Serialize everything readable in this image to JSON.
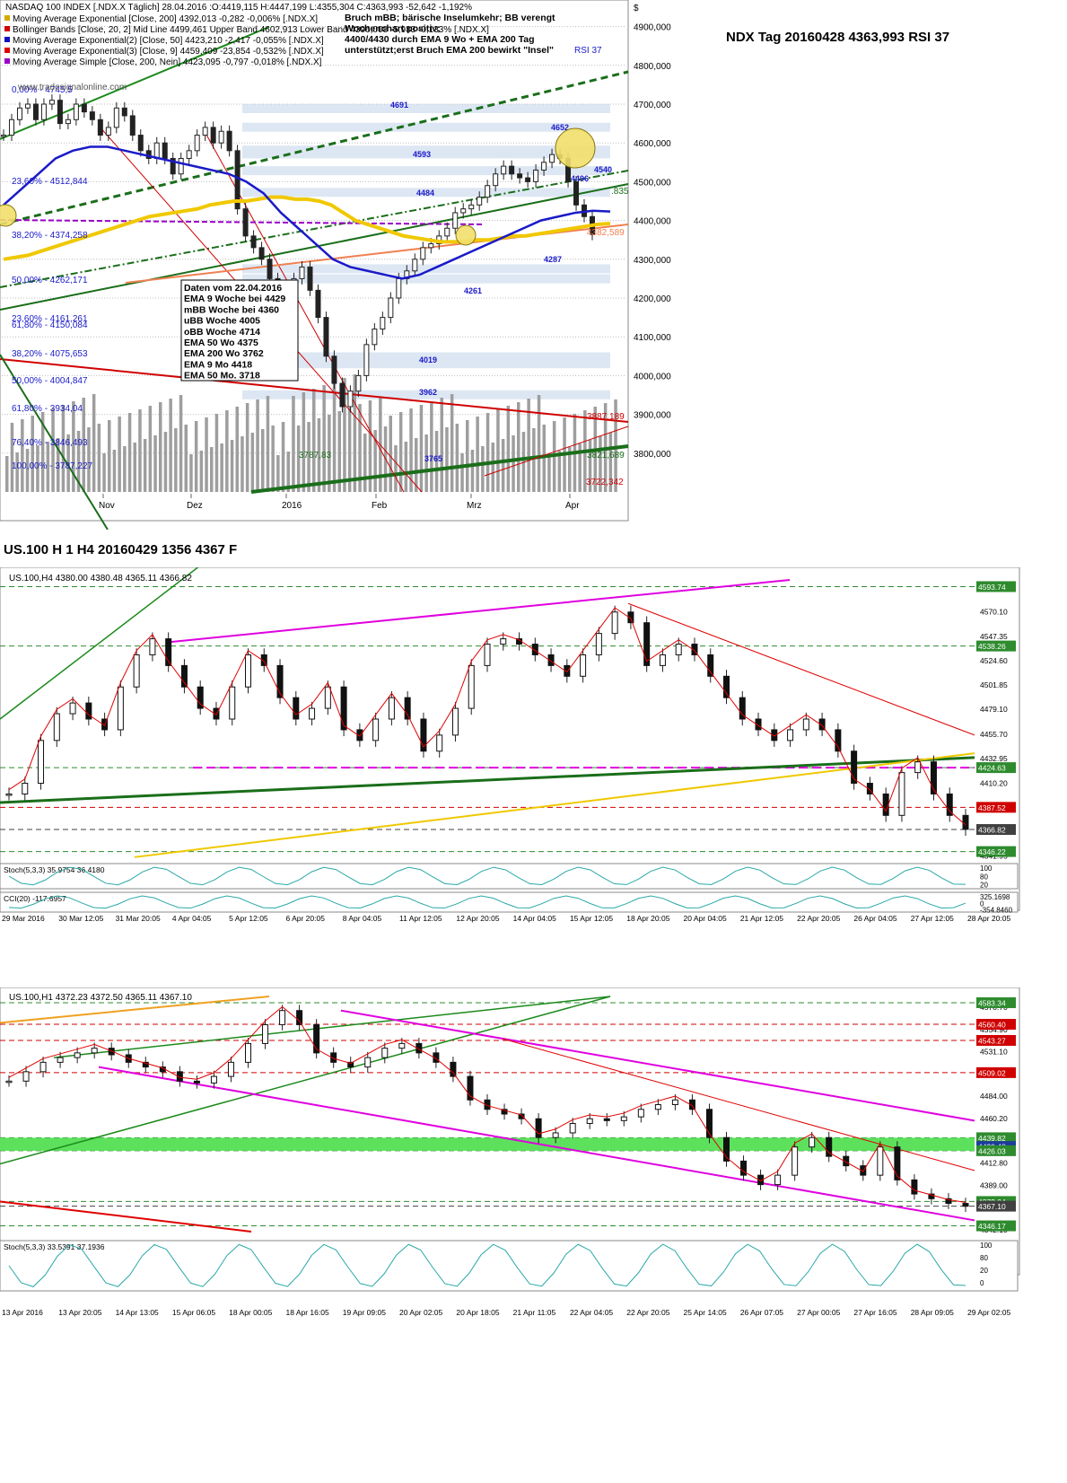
{
  "page_title": "NDX Tag 20160428 4363,993 RSI 37",
  "section2_title": "US.100 H 1 H4 20160429 1356 4367 F",
  "chart_data": [
    {
      "id": "daily",
      "type": "line",
      "title": "NASDAQ 100 INDEX [.NDX.X Täglich] 28.04.2016 :O:4419,115 H:4447,199 L:4355,304 C:4363,993 -52,642 -1,192%",
      "legend": [
        {
          "label": "Moving Average Exponential [Close, 200] 4392,013 -0,282 -0,006% [.NDX.X]",
          "color": "#d4a900"
        },
        {
          "label": "Bollinger Bands [Close, 20, 2] Mid Line 4499,461 Upper Band 4602,913 Lower Band 4396,008 -5,983 -0,133% [.NDX.X]",
          "color": "#d00000"
        },
        {
          "label": "Moving Average Exponential(2) [Close, 50] 4423,210 -2,417 -0,055% [.NDX.X]",
          "color": "#1010c0"
        },
        {
          "label": "Moving Average Exponential(3) [Close, 9] 4459,409 -23,854 -0,532% [.NDX.X]",
          "color": "#e00000"
        },
        {
          "label": "Moving Average Simple [Close, 200, Nein] 4423,095 -0,797 -0,018% [.NDX.X]",
          "color": "#9a00c8"
        }
      ],
      "notes": [
        "Bruch mBB; bärische Inselumkehr; BB verengt",
        "Wochenchart positiv;",
        "4400/4430  durch EMA 9 Wo + EMA 200 Tag",
        "unterstützt;erst Bruch EMA 200 bewirkt \"Insel\""
      ],
      "rsi_label": "RSI 37",
      "watermark": "www.tradesignalonline.com",
      "y_ticks": [
        "4900,000",
        "4800,000",
        "4700,000",
        "4600,000",
        "4500,000",
        "4400,000",
        "4300,000",
        "4200,000",
        "4100,000",
        "4000,000",
        "3900,000",
        "3800,000"
      ],
      "y_axis_symbol": "$",
      "ylim": [
        3700,
        4950
      ],
      "x_ticks": [
        "Nov",
        "Dez",
        "2016",
        "Feb",
        "Mrz",
        "Apr"
      ],
      "fib_labels": [
        "0,00% - 4745,5",
        "23,60% - 4512,844",
        "38,20% - 4374,258",
        "50,00% - 4262,171",
        "23,60% - 4161,261",
        "61,80% - 4150,084",
        "38,20% - 4075,653",
        "50,00% - 4004,847",
        "61,80% - 3934,04",
        "76,40% - 3846,493",
        "100,00% - 3787,227"
      ],
      "zone_labels": [
        "4691",
        "4652",
        "4593",
        "4540",
        "4496",
        "4484",
        "4287",
        "4261",
        "4019",
        "3962",
        "3765"
      ],
      "line_value_labels": [
        "3887,189",
        "3722,342",
        "4382,589",
        "3821,689",
        "3787,83",
        ".835"
      ],
      "box_lines": [
        "Daten vom 22.04.2016",
        "EMA 9 Woche bei 4429",
        "mBB Woche bei 4360",
        "uBB Woche 4005",
        "oBB Woche 4714",
        "EMA 50 Wo  4375",
        "EMA 200 Wo  3762",
        "EMA 9 Mo  4418",
        "EMA 50 Mo.  3718"
      ],
      "series": [
        {
          "name": "Close",
          "values": [
            4620,
            4660,
            4690,
            4700,
            4660,
            4700,
            4710,
            4650,
            4660,
            4700,
            4680,
            4660,
            4620,
            4640,
            4690,
            4670,
            4620,
            4580,
            4560,
            4600,
            4560,
            4520,
            4560,
            4580,
            4620,
            4640,
            4600,
            4630,
            4580,
            4430,
            4360,
            4330,
            4300,
            4250,
            4220,
            4200,
            4250,
            4280,
            4220,
            4150,
            4050,
            3980,
            3920,
            3960,
            4000,
            4080,
            4120,
            4150,
            4200,
            4250,
            4270,
            4300,
            4330,
            4340,
            4360,
            4380,
            4420,
            4430,
            4440,
            4460,
            4490,
            4520,
            4540,
            4520,
            4510,
            4500,
            4530,
            4550,
            4570,
            4560,
            4500,
            4440,
            4410,
            4364
          ]
        },
        {
          "name": "EMA 200",
          "values": [
            4300,
            4305,
            4310,
            4320,
            4330,
            4340,
            4350,
            4360,
            4370,
            4380,
            4390,
            4400,
            4410,
            4415,
            4420,
            4425,
            4430,
            4440,
            4445,
            4450,
            4450,
            4455,
            4460,
            4460,
            4455,
            4455,
            4450,
            4440,
            4420,
            4400,
            4390,
            4380,
            4370,
            4360,
            4355,
            4350,
            4345,
            4345,
            4345,
            4350,
            4350,
            4355,
            4360,
            4360,
            4365,
            4370,
            4375,
            4380,
            4385,
            4390,
            4392
          ]
        },
        {
          "name": "EMA 50",
          "values": [
            4440,
            4480,
            4520,
            4560,
            4580,
            4590,
            4590,
            4580,
            4570,
            4560,
            4550,
            4540,
            4530,
            4520,
            4500,
            4470,
            4420,
            4380,
            4340,
            4300,
            4280,
            4270,
            4260,
            4250,
            4260,
            4280,
            4300,
            4320,
            4340,
            4360,
            4380,
            4400,
            4410,
            4420,
            4425,
            4423
          ]
        }
      ]
    },
    {
      "id": "h4",
      "type": "line",
      "header": "US.100,H4  4380.00 4380.48 4365.11 4366.82",
      "y_ticks": [
        "4570.10",
        "4547.35",
        "4524.60",
        "4501.85",
        "4479.10",
        "4455.70",
        "4432.95",
        "4410.20",
        "4364.70",
        "4341.95"
      ],
      "highlight_ticks": [
        {
          "label": "4593.74",
          "color": "#2e8b2e",
          "value": 4593.74
        },
        {
          "label": "4538.26",
          "color": "#2e8b2e",
          "value": 4538.26
        },
        {
          "label": "4424.63",
          "color": "#2e8b2e",
          "value": 4424.63
        },
        {
          "label": "4387.52",
          "color": "#d00000",
          "value": 4387.52
        },
        {
          "label": "4366.82",
          "color": "#404040",
          "value": 4366.82
        },
        {
          "label": "4346.22",
          "color": "#2e8b2e",
          "value": 4346.22
        }
      ],
      "ylim": [
        4340,
        4600
      ],
      "x_ticks": [
        "29 Mar 2016",
        "30 Mar 12:05",
        "31 Mar 20:05",
        "4 Apr 04:05",
        "5 Apr 12:05",
        "6 Apr 20:05",
        "8 Apr 04:05",
        "11 Apr 12:05",
        "12 Apr 20:05",
        "14 Apr 04:05",
        "15 Apr 12:05",
        "18 Apr 20:05",
        "20 Apr 04:05",
        "21 Apr 12:05",
        "22 Apr 20:05",
        "26 Apr 04:05",
        "27 Apr 12:05",
        "28 Apr 20:05"
      ],
      "series": [
        {
          "name": "Close",
          "values": [
            4400,
            4410,
            4450,
            4475,
            4485,
            4470,
            4460,
            4500,
            4530,
            4545,
            4520,
            4500,
            4480,
            4470,
            4500,
            4530,
            4520,
            4490,
            4470,
            4480,
            4500,
            4460,
            4450,
            4470,
            4490,
            4470,
            4440,
            4455,
            4480,
            4520,
            4540,
            4545,
            4540,
            4530,
            4520,
            4510,
            4530,
            4550,
            4570,
            4560,
            4520,
            4530,
            4540,
            4530,
            4510,
            4490,
            4470,
            4460,
            4450,
            4460,
            4470,
            4460,
            4440,
            4410,
            4400,
            4380,
            4420,
            4430,
            4400,
            4380,
            4367
          ]
        }
      ],
      "indicators": [
        {
          "label": "Stoch(5,3,3) 35.9754 36.4180",
          "ticks": [
            "100",
            "80",
            "20"
          ]
        },
        {
          "label": "CCI(20) -117.6957",
          "ticks": [
            "325.1698",
            "0",
            "-354.8460"
          ]
        }
      ]
    },
    {
      "id": "h1",
      "type": "line",
      "header": "US.100,H1  4372.23 4372.50 4365.11 4367.10",
      "y_ticks": [
        "4578.70",
        "4554.90",
        "4531.10",
        "4507.30",
        "4484.00",
        "4460.20",
        "4412.80",
        "4389.00",
        "4365.20",
        "4342.10"
      ],
      "highlight_ticks": [
        {
          "label": "4583.34",
          "color": "#2e8b2e",
          "value": 4583.34
        },
        {
          "label": "4560.40",
          "color": "#d00000",
          "value": 4560.4
        },
        {
          "label": "4543.27",
          "color": "#d00000",
          "value": 4543.27
        },
        {
          "label": "4509.02",
          "color": "#d00000",
          "value": 4509.02
        },
        {
          "label": "4439.82",
          "color": "#2e8b2e",
          "value": 4439.82
        },
        {
          "label": "4430.48",
          "color": "#1c3c9c",
          "value": 4430.48
        },
        {
          "label": "4426.03",
          "color": "#2e8b2e",
          "value": 4426.03
        },
        {
          "label": "4372.04",
          "color": "#2e8b2e",
          "value": 4372.04
        },
        {
          "label": "4367.10",
          "color": "#404040",
          "value": 4367.1
        },
        {
          "label": "4346.17",
          "color": "#2e8b2e",
          "value": 4346.17
        }
      ],
      "ylim": [
        4340,
        4590
      ],
      "x_ticks": [
        "13 Apr 2016",
        "13 Apr 20:05",
        "14 Apr 13:05",
        "15 Apr 06:05",
        "18 Apr 00:05",
        "18 Apr 16:05",
        "19 Apr 09:05",
        "20 Apr 02:05",
        "20 Apr 18:05",
        "21 Apr 11:05",
        "22 Apr 04:05",
        "22 Apr 20:05",
        "25 Apr 14:05",
        "26 Apr 07:05",
        "27 Apr 00:05",
        "27 Apr 16:05",
        "28 Apr 09:05",
        "29 Apr 02:05"
      ],
      "series": [
        {
          "name": "Close",
          "values": [
            4500,
            4510,
            4520,
            4525,
            4530,
            4535,
            4528,
            4520,
            4515,
            4510,
            4500,
            4498,
            4505,
            4520,
            4540,
            4560,
            4575,
            4560,
            4530,
            4520,
            4515,
            4525,
            4535,
            4540,
            4530,
            4520,
            4505,
            4480,
            4470,
            4465,
            4460,
            4440,
            4445,
            4455,
            4460,
            4458,
            4462,
            4470,
            4475,
            4480,
            4470,
            4440,
            4415,
            4400,
            4390,
            4400,
            4430,
            4440,
            4420,
            4410,
            4400,
            4430,
            4395,
            4380,
            4375,
            4370,
            4367
          ]
        }
      ],
      "indicators": [
        {
          "label": "Stoch(5,3,3) 33.5391 37.1936",
          "ticks": [
            "100",
            "80",
            "20",
            "0"
          ]
        }
      ]
    }
  ]
}
